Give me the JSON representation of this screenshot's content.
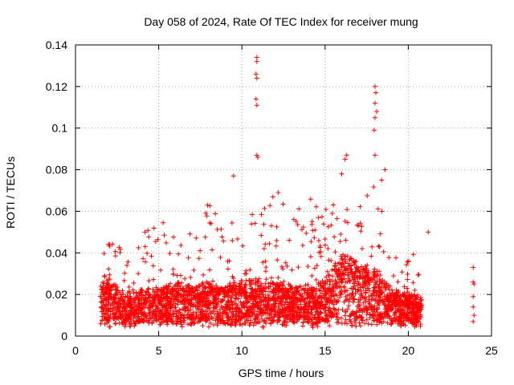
{
  "chart_data": {
    "type": "scatter",
    "title": "Day 058 of 2024, Rate Of TEC Index for receiver mung",
    "xlabel": "GPS time / hours",
    "ylabel": "ROTI / TECUs",
    "xlim": [
      0,
      25
    ],
    "ylim": [
      0,
      0.14
    ],
    "xticks": [
      "0",
      "5",
      "10",
      "15",
      "20",
      "25"
    ],
    "yticks": [
      "0",
      "0.02",
      "0.04",
      "0.06",
      "0.08",
      "0.1",
      "0.12",
      "0.14"
    ],
    "grid": true,
    "marker": "plus",
    "color": "#ff0000",
    "density_profile": [
      {
        "x": 1.5,
        "typical": 0.02,
        "max": 0.044
      },
      {
        "x": 2.2,
        "typical": 0.018,
        "max": 0.056
      },
      {
        "x": 3.0,
        "typical": 0.014,
        "max": 0.035
      },
      {
        "x": 4.0,
        "typical": 0.016,
        "max": 0.05
      },
      {
        "x": 5.0,
        "typical": 0.016,
        "max": 0.058
      },
      {
        "x": 6.0,
        "typical": 0.018,
        "max": 0.062
      },
      {
        "x": 7.0,
        "typical": 0.017,
        "max": 0.05
      },
      {
        "x": 8.0,
        "typical": 0.018,
        "max": 0.067
      },
      {
        "x": 9.0,
        "typical": 0.017,
        "max": 0.05
      },
      {
        "x": 10.0,
        "typical": 0.018,
        "max": 0.066
      },
      {
        "x": 11.0,
        "typical": 0.019,
        "max": 0.07
      },
      {
        "x": 12.0,
        "typical": 0.018,
        "max": 0.076
      },
      {
        "x": 13.0,
        "typical": 0.017,
        "max": 0.058
      },
      {
        "x": 14.0,
        "typical": 0.017,
        "max": 0.07
      },
      {
        "x": 15.0,
        "typical": 0.019,
        "max": 0.06
      },
      {
        "x": 16.0,
        "typical": 0.027,
        "max": 0.08
      },
      {
        "x": 17.0,
        "typical": 0.024,
        "max": 0.062
      },
      {
        "x": 18.0,
        "typical": 0.022,
        "max": 0.074
      },
      {
        "x": 19.0,
        "typical": 0.016,
        "max": 0.045
      },
      {
        "x": 20.0,
        "typical": 0.015,
        "max": 0.045
      },
      {
        "x": 20.8,
        "typical": 0.014,
        "max": 0.04
      }
    ],
    "outliers": [
      {
        "x": 10.9,
        "y": 0.134
      },
      {
        "x": 10.9,
        "y": 0.132
      },
      {
        "x": 10.85,
        "y": 0.126
      },
      {
        "x": 10.9,
        "y": 0.124
      },
      {
        "x": 10.85,
        "y": 0.114
      },
      {
        "x": 10.9,
        "y": 0.111
      },
      {
        "x": 10.9,
        "y": 0.087
      },
      {
        "x": 10.95,
        "y": 0.086
      },
      {
        "x": 9.5,
        "y": 0.077
      },
      {
        "x": 18.0,
        "y": 0.12
      },
      {
        "x": 18.05,
        "y": 0.117
      },
      {
        "x": 18.0,
        "y": 0.112
      },
      {
        "x": 18.1,
        "y": 0.108
      },
      {
        "x": 18.0,
        "y": 0.105
      },
      {
        "x": 17.95,
        "y": 0.099
      },
      {
        "x": 18.0,
        "y": 0.087
      },
      {
        "x": 16.3,
        "y": 0.087
      },
      {
        "x": 16.2,
        "y": 0.085
      },
      {
        "x": 18.6,
        "y": 0.08
      },
      {
        "x": 18.4,
        "y": 0.075
      },
      {
        "x": 16.0,
        "y": 0.078
      },
      {
        "x": 21.2,
        "y": 0.05
      },
      {
        "x": 23.9,
        "y": 0.033
      },
      {
        "x": 23.9,
        "y": 0.026
      },
      {
        "x": 23.95,
        "y": 0.025
      },
      {
        "x": 23.9,
        "y": 0.019
      },
      {
        "x": 23.9,
        "y": 0.014
      },
      {
        "x": 23.95,
        "y": 0.01
      },
      {
        "x": 23.9,
        "y": 0.007
      }
    ]
  }
}
